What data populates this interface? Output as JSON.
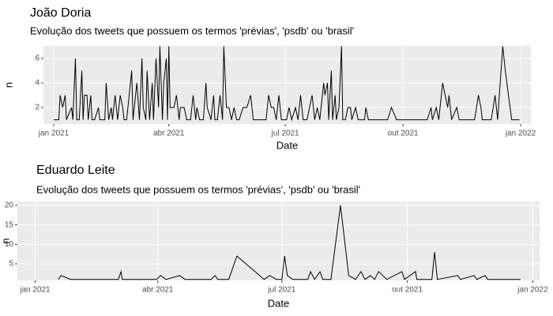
{
  "chart_data": [
    {
      "type": "line",
      "title": "João Doria",
      "subtitle": "Evolução dos tweets que possuem os termos 'prévias', 'psdb' ou 'brasil'",
      "xlabel": "Date",
      "ylabel": "n",
      "color": "#000000",
      "grid": true,
      "xlim": [
        -8,
        373
      ],
      "ylim": [
        0.65,
        7.03
      ],
      "xticks": [
        {
          "value": 0,
          "label": "jan 2021"
        },
        {
          "value": 90,
          "label": "abr 2021"
        },
        {
          "value": 181,
          "label": "jul 2021"
        },
        {
          "value": 273,
          "label": "out 2021"
        },
        {
          "value": 365,
          "label": "jan 2022"
        }
      ],
      "yticks": [
        2,
        4,
        6
      ],
      "x": [
        0,
        4,
        5,
        7,
        9,
        10,
        14,
        15,
        17,
        18,
        20,
        22,
        23,
        24,
        26,
        27,
        29,
        30,
        32,
        35,
        36,
        40,
        41,
        43,
        45,
        46,
        48,
        50,
        52,
        54,
        55,
        57,
        61,
        62,
        64,
        65,
        67,
        69,
        70,
        72,
        73,
        75,
        77,
        78,
        80,
        82,
        83,
        85,
        86,
        88,
        89,
        90,
        91,
        94,
        96,
        98,
        99,
        102,
        104,
        107,
        109,
        111,
        112,
        114,
        117,
        119,
        120,
        123,
        125,
        126,
        128,
        130,
        132,
        133,
        135,
        137,
        139,
        141,
        143,
        145,
        148,
        151,
        154,
        156,
        162,
        166,
        168,
        170,
        172,
        174,
        176,
        178,
        182,
        184,
        186,
        189,
        191,
        193,
        195,
        198,
        200,
        202,
        204,
        206,
        208,
        211,
        212,
        214,
        215,
        217,
        218,
        220,
        221,
        223,
        225,
        226,
        228,
        230,
        232,
        233,
        236,
        238,
        243,
        244,
        246,
        248,
        261,
        264,
        268,
        273,
        292,
        295,
        296,
        299,
        301,
        304,
        306,
        308,
        309,
        311,
        315,
        317,
        329,
        332,
        334,
        335,
        342,
        345,
        347,
        351,
        353,
        358,
        364
      ],
      "values": [
        1,
        1,
        3,
        2,
        3,
        1,
        2,
        1,
        6,
        1,
        1,
        5,
        1,
        3,
        3,
        1,
        3,
        1,
        1,
        2,
        1,
        1,
        4,
        1,
        2,
        1,
        3,
        1,
        3,
        2,
        1,
        1,
        5,
        1,
        3,
        4,
        1,
        6,
        2,
        1,
        5,
        1,
        4,
        1,
        6,
        2,
        7,
        1,
        4,
        6,
        1,
        7,
        2,
        2,
        3,
        1,
        2,
        2,
        1,
        1,
        3,
        1,
        2,
        1,
        1,
        4,
        2,
        1,
        3,
        1,
        1,
        3,
        1,
        7,
        2,
        2,
        1,
        2,
        1,
        1,
        2,
        2,
        3,
        1,
        1,
        1,
        3,
        2,
        2,
        1,
        3,
        1,
        1,
        2,
        1,
        2,
        1,
        3,
        1,
        1,
        2,
        3,
        1,
        2,
        1,
        4,
        3,
        4,
        1,
        5,
        1,
        3,
        1,
        2,
        7,
        1,
        1,
        2,
        2,
        1,
        2,
        1,
        1,
        2,
        1,
        1,
        1,
        2,
        1,
        1,
        1,
        2,
        1,
        2,
        1,
        4,
        3,
        2,
        3,
        1,
        2,
        1,
        1,
        3,
        2,
        1,
        1,
        3,
        1,
        7,
        5,
        1,
        1
      ]
    },
    {
      "type": "line",
      "title": "Eduardo Leite",
      "subtitle": "Evolução dos tweets que possuem os termos 'prévias', 'psdb' ou 'brasil'",
      "xlabel": "Date",
      "ylabel": "n",
      "color": "#000000",
      "grid": true,
      "xlim": [
        -13,
        370
      ],
      "ylim": [
        0.74,
        21
      ],
      "xticks": [
        {
          "value": 0,
          "label": "jan 2021"
        },
        {
          "value": 90,
          "label": "abr 2021"
        },
        {
          "value": 181,
          "label": "jul 2021"
        },
        {
          "value": 273,
          "label": "out 2021"
        },
        {
          "value": 365,
          "label": "jan 2022"
        }
      ],
      "yticks": [
        5,
        10,
        15,
        20
      ],
      "x": [
        17,
        19,
        26,
        61,
        63,
        64,
        89,
        92,
        96,
        106,
        110,
        129,
        132,
        134,
        142,
        148,
        168,
        172,
        177,
        181,
        183,
        185,
        189,
        200,
        202,
        205,
        209,
        211,
        217,
        224,
        230,
        235,
        239,
        242,
        246,
        249,
        252,
        258,
        269,
        271,
        279,
        280,
        291,
        293,
        295,
        310,
        312,
        322,
        324,
        330,
        332,
        356
      ],
      "values": [
        1,
        2,
        1,
        1,
        3,
        1,
        1,
        2,
        1,
        2,
        1,
        1,
        2,
        1,
        1,
        7,
        1,
        2,
        1,
        1,
        7,
        2,
        1,
        1,
        3,
        1,
        3,
        1,
        1,
        20,
        2,
        1,
        3,
        1,
        2,
        1,
        3,
        1,
        3,
        1,
        3,
        1,
        1,
        8,
        1,
        2,
        1,
        2,
        1,
        2,
        1,
        1
      ]
    }
  ]
}
